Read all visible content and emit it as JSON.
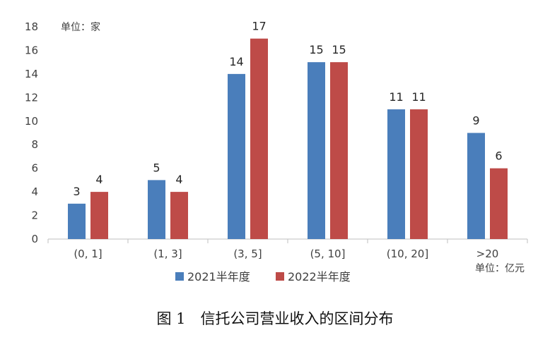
{
  "chart_data": {
    "type": "bar",
    "categories": [
      "(0, 1]",
      "(1, 3]",
      "(3, 5]",
      "(5, 10]",
      "(10, 20]",
      ">20"
    ],
    "series": [
      {
        "name": "2021半年度",
        "values": [
          3,
          5,
          14,
          15,
          11,
          9
        ],
        "color": "#4A7EBB"
      },
      {
        "name": "2022半年度",
        "values": [
          4,
          4,
          17,
          15,
          11,
          6
        ],
        "color": "#BE4B48"
      }
    ],
    "y_unit_label": "单位：家",
    "x_unit_label": "单位：亿元",
    "ylim": [
      0,
      18
    ],
    "yticks": [
      0,
      2,
      4,
      6,
      8,
      10,
      12,
      14,
      16,
      18
    ],
    "grid": false,
    "legend_position": "bottom"
  },
  "caption": "图 1　信托公司营业收入的区间分布"
}
